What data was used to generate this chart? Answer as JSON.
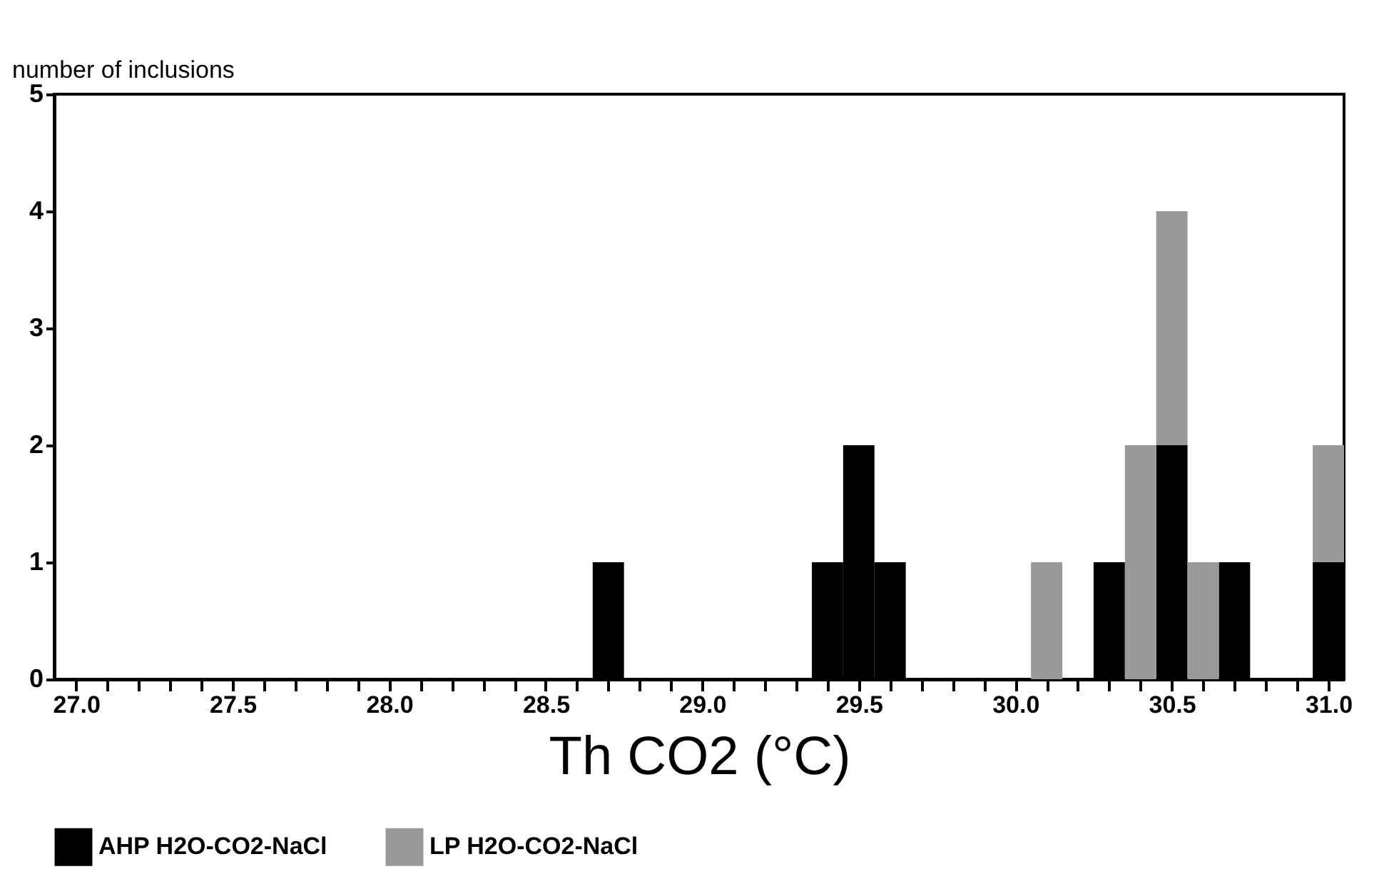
{
  "chart_data": {
    "type": "bar",
    "xlabel": "Th CO2 (°C)",
    "ylabel": "number of inclusions",
    "x": [
      27.0,
      27.1,
      27.2,
      27.3,
      27.4,
      27.5,
      27.6,
      27.7,
      27.8,
      27.9,
      28.0,
      28.1,
      28.2,
      28.3,
      28.4,
      28.5,
      28.6,
      28.7,
      28.8,
      28.9,
      29.0,
      29.1,
      29.2,
      29.3,
      29.4,
      29.5,
      29.6,
      29.7,
      29.8,
      29.9,
      30.0,
      30.1,
      30.2,
      30.3,
      30.4,
      30.5,
      30.6,
      30.7,
      30.8,
      30.9,
      31.0
    ],
    "stacked": true,
    "series": [
      {
        "name": "AHP H2O-CO2-NaCl",
        "color": "#000000",
        "values": [
          0,
          0,
          0,
          0,
          0,
          0,
          0,
          0,
          0,
          0,
          0,
          0,
          0,
          0,
          0,
          0,
          0,
          1,
          0,
          0,
          0,
          0,
          0,
          0,
          1,
          2,
          1,
          0,
          0,
          0,
          0,
          0,
          0,
          1,
          0,
          2,
          0,
          1,
          0,
          0,
          1
        ]
      },
      {
        "name": "LP H2O-CO2-NaCl",
        "color": "#9a9a9a",
        "values": [
          0,
          0,
          0,
          0,
          0,
          0,
          0,
          0,
          0,
          0,
          0,
          0,
          0,
          0,
          0,
          0,
          0,
          0,
          0,
          0,
          0,
          0,
          0,
          0,
          0,
          0,
          0,
          0,
          0,
          0,
          0,
          1,
          0,
          0,
          2,
          2,
          1,
          0,
          0,
          0,
          1
        ]
      }
    ],
    "xlim": [
      26.93,
      31.05
    ],
    "ylim": [
      0,
      5
    ],
    "xticks": [
      {
        "value": 27.0,
        "label": "27.0"
      },
      {
        "value": 27.1,
        "label": null
      },
      {
        "value": 27.2,
        "label": null
      },
      {
        "value": 27.3,
        "label": null
      },
      {
        "value": 27.4,
        "label": null
      },
      {
        "value": 27.5,
        "label": "27.5"
      },
      {
        "value": 27.6,
        "label": null
      },
      {
        "value": 27.7,
        "label": null
      },
      {
        "value": 27.8,
        "label": null
      },
      {
        "value": 27.9,
        "label": null
      },
      {
        "value": 28.0,
        "label": "28.0"
      },
      {
        "value": 28.1,
        "label": null
      },
      {
        "value": 28.2,
        "label": null
      },
      {
        "value": 28.3,
        "label": null
      },
      {
        "value": 28.4,
        "label": null
      },
      {
        "value": 28.5,
        "label": "28.5"
      },
      {
        "value": 28.6,
        "label": null
      },
      {
        "value": 28.7,
        "label": null
      },
      {
        "value": 28.8,
        "label": null
      },
      {
        "value": 28.9,
        "label": null
      },
      {
        "value": 29.0,
        "label": "29.0"
      },
      {
        "value": 29.1,
        "label": null
      },
      {
        "value": 29.2,
        "label": null
      },
      {
        "value": 29.3,
        "label": null
      },
      {
        "value": 29.4,
        "label": null
      },
      {
        "value": 29.5,
        "label": "29.5"
      },
      {
        "value": 29.6,
        "label": null
      },
      {
        "value": 29.7,
        "label": null
      },
      {
        "value": 29.8,
        "label": null
      },
      {
        "value": 29.9,
        "label": null
      },
      {
        "value": 30.0,
        "label": "30.0"
      },
      {
        "value": 30.1,
        "label": null
      },
      {
        "value": 30.2,
        "label": null
      },
      {
        "value": 30.3,
        "label": null
      },
      {
        "value": 30.4,
        "label": null
      },
      {
        "value": 30.5,
        "label": "30.5"
      },
      {
        "value": 30.6,
        "label": null
      },
      {
        "value": 30.7,
        "label": null
      },
      {
        "value": 30.8,
        "label": null
      },
      {
        "value": 30.9,
        "label": null
      },
      {
        "value": 31.0,
        "label": "31.0"
      }
    ],
    "yticks": [
      0,
      1,
      2,
      3,
      4,
      5
    ],
    "grid": false,
    "legend": "bottom"
  }
}
